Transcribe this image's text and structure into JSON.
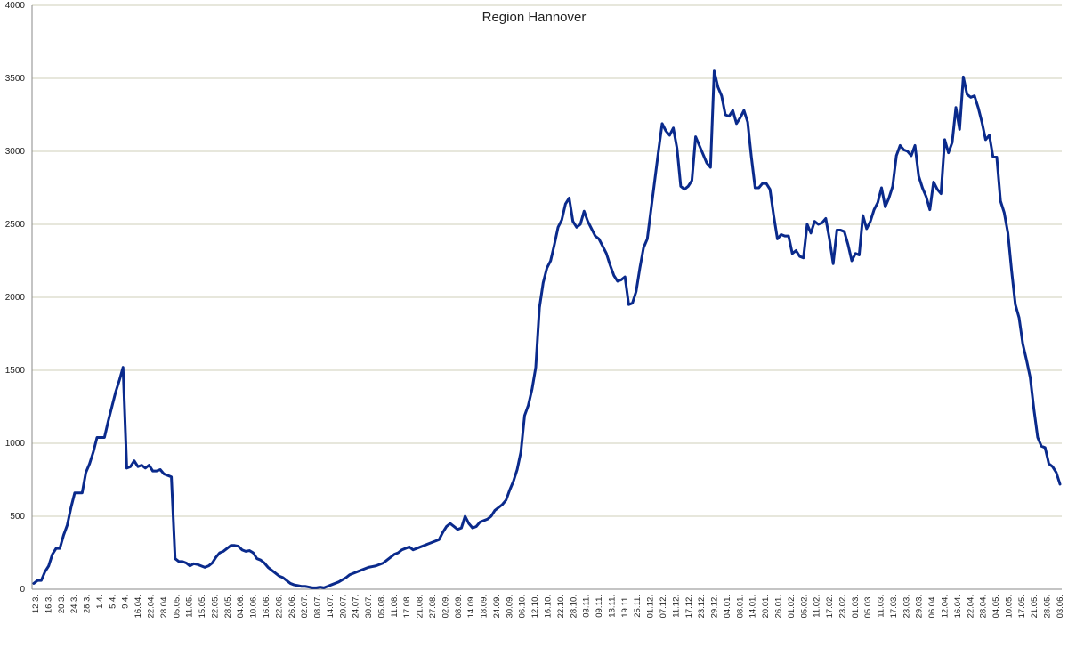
{
  "chart_data": {
    "type": "line",
    "title": "Region Hannover",
    "xlabel": "",
    "ylabel": "",
    "ylim": [
      0,
      4000
    ],
    "yticks": [
      0,
      500,
      1000,
      1500,
      2000,
      2500,
      3000,
      3500,
      4000
    ],
    "grid": "horizontal",
    "legend": "none",
    "colors": {
      "line": "#0a2a8c",
      "grid": "#cfcfb8",
      "axis": "#888888"
    },
    "x_tick_labels": [
      "12.3.",
      "16.3.",
      "20.3.",
      "24.3.",
      "28.3.",
      "1.4.",
      "5.4.",
      "9.4.",
      "16.04.",
      "22.04.",
      "28.04.",
      "05.05.",
      "11.05.",
      "15.05.",
      "22.05.",
      "28.05.",
      "04.06.",
      "10.06.",
      "16.06.",
      "22.06.",
      "26.06.",
      "02.07.",
      "08.07.",
      "14.07.",
      "20.07.",
      "24.07.",
      "30.07.",
      "05.08.",
      "11.08.",
      "17.08.",
      "21.08.",
      "27.08.",
      "02.09.",
      "08.09.",
      "14.09.",
      "18.09.",
      "24.09.",
      "30.09.",
      "06.10.",
      "12.10.",
      "16.10.",
      "22.10.",
      "28.10.",
      "03.11.",
      "09.11.",
      "13.11.",
      "19.11.",
      "25.11.",
      "01.12.",
      "07.12.",
      "11.12.",
      "17.12.",
      "23.12.",
      "29.12.",
      "04.01.",
      "08.01.",
      "14.01.",
      "20.01.",
      "26.01.",
      "01.02.",
      "05.02.",
      "11.02.",
      "17.02.",
      "23.02.",
      "01.03.",
      "05.03.",
      "11.03.",
      "17.03.",
      "23.03.",
      "29.03.",
      "06.04.",
      "12.04.",
      "16.04.",
      "22.04.",
      "28.04.",
      "04.05.",
      "10.05.",
      "17.05.",
      "21.05.",
      "28.05.",
      "03.06."
    ],
    "series": [
      {
        "values": [
          40,
          60,
          60,
          120,
          160,
          240,
          280,
          280,
          370,
          440,
          560,
          660,
          660,
          660,
          800,
          860,
          940,
          1040,
          1040,
          1040,
          1150,
          1250,
          1350,
          1430,
          1520,
          830,
          840,
          880,
          840,
          850,
          830,
          850,
          810,
          810,
          820,
          790,
          780,
          770,
          210,
          190,
          190,
          180,
          160,
          175,
          170,
          160,
          150,
          160,
          180,
          220,
          250,
          260,
          280,
          300,
          300,
          295,
          270,
          260,
          265,
          250,
          210,
          200,
          180,
          150,
          130,
          110,
          90,
          80,
          60,
          40,
          30,
          25,
          20,
          20,
          15,
          10,
          10,
          15,
          10,
          20,
          30,
          40,
          50,
          65,
          80,
          100,
          110,
          120,
          130,
          140,
          150,
          155,
          160,
          170,
          180,
          200,
          220,
          240,
          250,
          270,
          280,
          290,
          270,
          280,
          290,
          300,
          310,
          320,
          330,
          340,
          390,
          430,
          450,
          430,
          410,
          420,
          500,
          450,
          420,
          430,
          460,
          470,
          480,
          500,
          540,
          560,
          580,
          610,
          680,
          740,
          820,
          940,
          1190,
          1260,
          1370,
          1520,
          1930,
          2100,
          2200,
          2250,
          2360,
          2480,
          2530,
          2640,
          2680,
          2520,
          2480,
          2500,
          2590,
          2520,
          2470,
          2420,
          2400,
          2350,
          2300,
          2220,
          2150,
          2110,
          2120,
          2140,
          1950,
          1960,
          2040,
          2200,
          2340,
          2400,
          2600,
          2800,
          3000,
          3190,
          3140,
          3110,
          3160,
          3020,
          2760,
          2740,
          2760,
          2800,
          3100,
          3040,
          2980,
          2920,
          2890,
          3550,
          3440,
          3380,
          3250,
          3240,
          3280,
          3190,
          3230,
          3280,
          3200,
          2960,
          2750,
          2750,
          2780,
          2780,
          2740,
          2560,
          2400,
          2430,
          2420,
          2420,
          2300,
          2320,
          2280,
          2270,
          2500,
          2440,
          2520,
          2500,
          2510,
          2540,
          2400,
          2230,
          2460,
          2460,
          2450,
          2360,
          2250,
          2300,
          2290,
          2560,
          2470,
          2520,
          2600,
          2650,
          2750,
          2620,
          2680,
          2760,
          2970,
          3040,
          3010,
          3000,
          2970,
          3040,
          2830,
          2750,
          2690,
          2600,
          2790,
          2740,
          2710,
          3080,
          2990,
          3060,
          3300,
          3150,
          3510,
          3390,
          3370,
          3380,
          3300,
          3200,
          3080,
          3110,
          2960,
          2960,
          2660,
          2580,
          2440,
          2180,
          1950,
          1860,
          1680,
          1570,
          1450,
          1230,
          1040,
          980,
          970,
          860,
          840,
          800,
          720
        ]
      }
    ]
  }
}
